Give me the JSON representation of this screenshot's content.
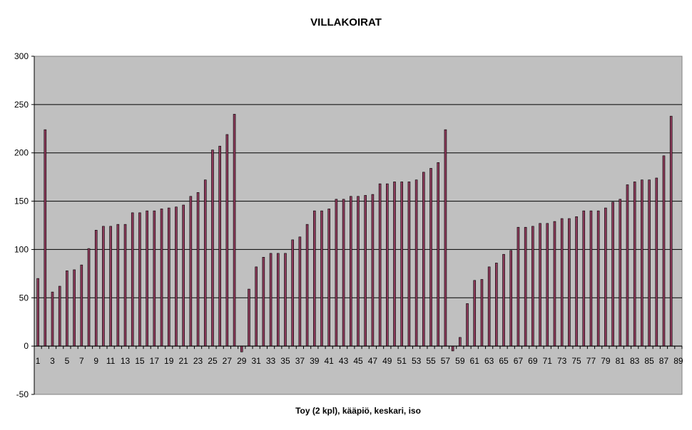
{
  "chart_data": {
    "type": "bar",
    "title": "VILLAKOIRAT",
    "xlabel": "Toy (2 kpl), kääpiö, keskari, iso",
    "ylabel": "",
    "ylim": [
      -50,
      300
    ],
    "yticks": [
      -50,
      0,
      50,
      100,
      150,
      200,
      250,
      300
    ],
    "grid": true,
    "legend": "none",
    "colors": {
      "plot_background": "#c0c0c0",
      "bar_fill": "#8c3a5a",
      "bar_stroke": "#000000",
      "gridline": "#000000"
    },
    "categories": [
      1,
      2,
      3,
      4,
      5,
      6,
      7,
      8,
      9,
      10,
      11,
      12,
      13,
      14,
      15,
      16,
      17,
      18,
      19,
      20,
      21,
      22,
      23,
      24,
      25,
      26,
      27,
      28,
      29,
      30,
      31,
      32,
      33,
      34,
      35,
      36,
      37,
      38,
      39,
      40,
      41,
      42,
      43,
      44,
      45,
      46,
      47,
      48,
      49,
      50,
      51,
      52,
      53,
      54,
      55,
      56,
      57,
      58,
      59,
      60,
      61,
      62,
      63,
      64,
      65,
      66,
      67,
      68,
      69,
      70,
      71,
      72,
      73,
      74,
      75,
      76,
      77,
      78,
      79,
      80,
      81,
      82,
      83,
      84,
      85,
      86,
      87,
      88,
      89
    ],
    "tick_labels": [
      1,
      3,
      5,
      7,
      9,
      11,
      13,
      15,
      17,
      19,
      21,
      23,
      25,
      27,
      29,
      31,
      33,
      35,
      37,
      39,
      41,
      43,
      45,
      47,
      49,
      51,
      53,
      55,
      57,
      59,
      61,
      63,
      65,
      67,
      69,
      71,
      73,
      75,
      77,
      79,
      81,
      83,
      85,
      87,
      89
    ],
    "values": [
      70,
      224,
      56,
      62,
      78,
      79,
      84,
      101,
      120,
      124,
      124,
      126,
      126,
      138,
      138,
      140,
      140,
      142,
      143,
      144,
      146,
      155,
      159,
      172,
      203,
      207,
      219,
      240,
      -6,
      59,
      82,
      92,
      96,
      96,
      96,
      110,
      113,
      126,
      140,
      140,
      142,
      152,
      152,
      155,
      155,
      156,
      157,
      168,
      168,
      170,
      170,
      170,
      172,
      180,
      184,
      190,
      224,
      -5,
      9,
      44,
      68,
      69,
      82,
      86,
      95,
      99,
      123,
      123,
      124,
      127,
      127,
      129,
      132,
      132,
      134,
      140,
      140,
      140,
      143,
      149,
      152,
      167,
      170,
      172,
      172,
      174,
      197,
      238,
      null
    ]
  }
}
